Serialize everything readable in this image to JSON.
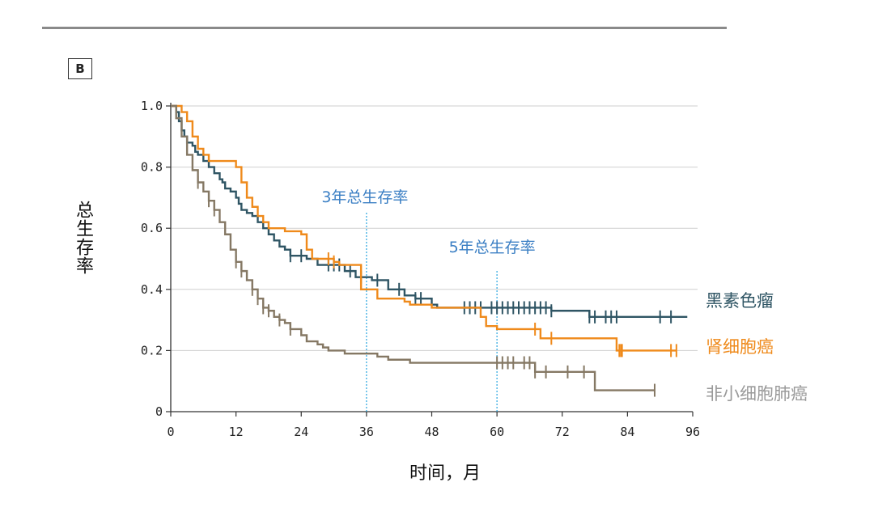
{
  "panel_label": "B",
  "chart_data": {
    "type": "line",
    "step": true,
    "title": "",
    "xlabel": "时间，月",
    "ylabel": "总生存率",
    "xlim": [
      0,
      96
    ],
    "ylim": [
      0,
      1.0
    ],
    "x_ticks": [
      "0",
      "12",
      "24",
      "36",
      "48",
      "60",
      "72",
      "84",
      "96"
    ],
    "y_ticks": [
      "0",
      "0.2",
      "0.4",
      "0.6",
      "0.8",
      "1.0"
    ],
    "grid": "horizontal",
    "reference_lines": [
      {
        "x": 36,
        "label": "3年总生存率"
      },
      {
        "x": 60,
        "label": "5年总生存率"
      }
    ],
    "series": [
      {
        "name": "黑素色瘤",
        "color": "#2f5564",
        "points": [
          [
            0,
            1.0
          ],
          [
            1,
            0.98
          ],
          [
            1.5,
            0.95
          ],
          [
            2,
            0.92
          ],
          [
            2.5,
            0.9
          ],
          [
            3,
            0.88
          ],
          [
            4,
            0.87
          ],
          [
            4.5,
            0.85
          ],
          [
            5,
            0.84
          ],
          [
            6,
            0.82
          ],
          [
            7,
            0.8
          ],
          [
            8,
            0.78
          ],
          [
            9,
            0.76
          ],
          [
            9.5,
            0.75
          ],
          [
            10,
            0.73
          ],
          [
            11,
            0.72
          ],
          [
            12,
            0.7
          ],
          [
            12.5,
            0.68
          ],
          [
            13,
            0.66
          ],
          [
            14,
            0.65
          ],
          [
            15,
            0.64
          ],
          [
            16,
            0.62
          ],
          [
            17,
            0.6
          ],
          [
            18,
            0.58
          ],
          [
            19,
            0.56
          ],
          [
            20,
            0.54
          ],
          [
            21,
            0.53
          ],
          [
            22,
            0.51
          ],
          [
            25,
            0.5
          ],
          [
            27,
            0.48
          ],
          [
            30,
            0.48
          ],
          [
            32,
            0.46
          ],
          [
            34,
            0.44
          ],
          [
            37,
            0.43
          ],
          [
            40,
            0.4
          ],
          [
            43,
            0.38
          ],
          [
            45,
            0.37
          ],
          [
            48,
            0.35
          ],
          [
            49,
            0.34
          ],
          [
            60,
            0.34
          ],
          [
            70,
            0.33
          ],
          [
            77,
            0.31
          ],
          [
            95,
            0.31
          ]
        ],
        "censor_x": [
          22,
          24,
          29,
          30,
          31,
          33,
          35,
          38,
          42,
          45,
          46,
          54,
          55,
          56,
          57,
          59,
          60,
          61,
          62,
          63,
          64,
          65,
          66,
          67,
          68,
          69,
          70,
          77,
          78,
          80,
          81,
          82,
          90,
          92
        ]
      },
      {
        "name": "肾细胞癌",
        "color": "#ef8a1b",
        "points": [
          [
            0,
            1.0
          ],
          [
            2,
            0.98
          ],
          [
            3,
            0.95
          ],
          [
            4,
            0.9
          ],
          [
            5,
            0.86
          ],
          [
            6,
            0.84
          ],
          [
            7,
            0.82
          ],
          [
            11,
            0.82
          ],
          [
            12,
            0.8
          ],
          [
            13,
            0.75
          ],
          [
            14,
            0.7
          ],
          [
            15,
            0.67
          ],
          [
            16,
            0.64
          ],
          [
            17,
            0.62
          ],
          [
            18,
            0.6
          ],
          [
            21,
            0.59
          ],
          [
            24,
            0.58
          ],
          [
            25,
            0.53
          ],
          [
            26,
            0.5
          ],
          [
            29,
            0.5
          ],
          [
            30,
            0.49
          ],
          [
            31,
            0.48
          ],
          [
            35,
            0.4
          ],
          [
            36,
            0.4
          ],
          [
            38,
            0.37
          ],
          [
            43,
            0.36
          ],
          [
            44,
            0.35
          ],
          [
            46,
            0.35
          ],
          [
            48,
            0.34
          ],
          [
            57,
            0.31
          ],
          [
            58,
            0.28
          ],
          [
            60,
            0.27
          ],
          [
            67,
            0.27
          ],
          [
            68,
            0.24
          ],
          [
            73,
            0.24
          ],
          [
            76,
            0.24
          ],
          [
            80,
            0.24
          ],
          [
            82,
            0.2
          ],
          [
            93,
            0.2
          ]
        ],
        "censor_x": [
          29,
          30,
          67,
          70,
          82.5,
          82.8,
          83,
          92,
          93
        ]
      },
      {
        "name": "非小细胞肺癌",
        "color": "#857864",
        "points": [
          [
            0,
            1.0
          ],
          [
            1,
            0.96
          ],
          [
            2,
            0.9
          ],
          [
            3,
            0.84
          ],
          [
            4,
            0.79
          ],
          [
            5,
            0.75
          ],
          [
            6,
            0.72
          ],
          [
            7,
            0.69
          ],
          [
            8,
            0.66
          ],
          [
            9,
            0.62
          ],
          [
            10,
            0.58
          ],
          [
            11,
            0.53
          ],
          [
            12,
            0.49
          ],
          [
            13,
            0.46
          ],
          [
            14,
            0.43
          ],
          [
            15,
            0.4
          ],
          [
            16,
            0.37
          ],
          [
            17,
            0.34
          ],
          [
            18,
            0.33
          ],
          [
            19,
            0.31
          ],
          [
            20,
            0.3
          ],
          [
            21,
            0.29
          ],
          [
            22,
            0.27
          ],
          [
            23,
            0.27
          ],
          [
            24,
            0.25
          ],
          [
            25,
            0.23
          ],
          [
            27,
            0.22
          ],
          [
            28,
            0.21
          ],
          [
            29,
            0.2
          ],
          [
            30,
            0.2
          ],
          [
            32,
            0.19
          ],
          [
            36,
            0.19
          ],
          [
            38,
            0.18
          ],
          [
            40,
            0.17
          ],
          [
            42,
            0.17
          ],
          [
            44,
            0.16
          ],
          [
            45,
            0.16
          ],
          [
            60,
            0.16
          ],
          [
            67,
            0.13
          ],
          [
            78,
            0.07
          ],
          [
            89,
            0.07
          ]
        ],
        "censor_x": [
          5,
          7,
          8,
          12,
          13,
          15,
          16,
          17,
          18,
          20,
          22,
          60,
          61,
          62,
          63,
          65,
          66,
          67,
          69,
          73,
          76,
          89
        ]
      }
    ]
  }
}
